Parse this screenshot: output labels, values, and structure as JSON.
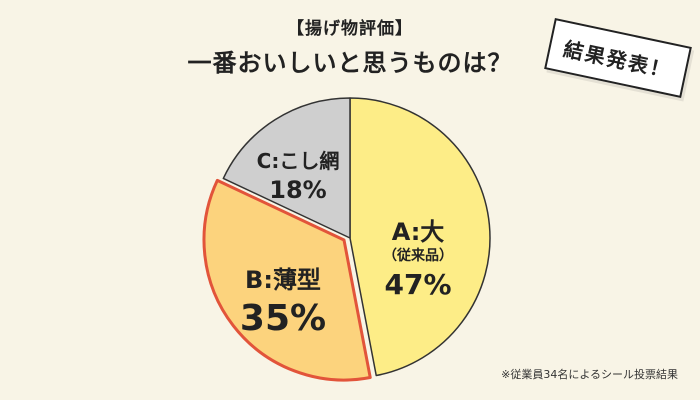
{
  "header": {
    "subtitle": "【揚げ物評価】",
    "title": "一番おいしいと思うものは？"
  },
  "badge": {
    "label": "結果発表！"
  },
  "footnote": "※従業員34名によるシール投票結果",
  "colors": {
    "A": "#fded87",
    "B": "#fcd37d",
    "C": "#cfcfcf",
    "outline": "#333333",
    "highlight": "#e2543a",
    "background": "#f8f4e6"
  },
  "chart_data": {
    "type": "pie",
    "title": "一番おいしいと思うものは？",
    "slices": [
      {
        "key": "A",
        "name": "A:大",
        "sub": "（従来品）",
        "value": 47,
        "percent_label": "47%"
      },
      {
        "key": "B",
        "name": "B:薄型",
        "sub": "",
        "value": 35,
        "percent_label": "35%"
      },
      {
        "key": "C",
        "name": "C:こし網",
        "sub": "",
        "value": 18,
        "percent_label": "18%"
      }
    ]
  }
}
